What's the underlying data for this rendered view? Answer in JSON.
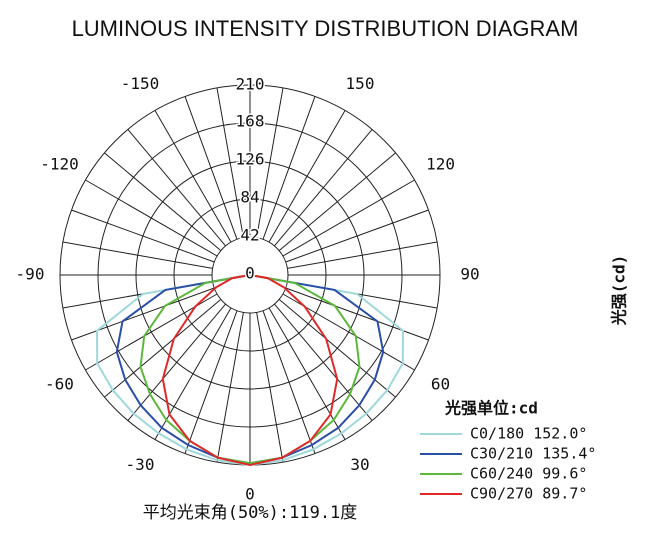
{
  "chart_data": {
    "type": "polar",
    "title": "LUMINOUS INTENSITY DISTRIBUTION DIAGRAM",
    "y_label": "光强(cd)",
    "legend_title": "光强单位:cd",
    "footer": "平均光束角(50%):119.1度",
    "rlim": [
      0,
      210
    ],
    "rticks": [
      0,
      42,
      84,
      126,
      168,
      210
    ],
    "angle_ticks": [
      -150,
      -120,
      -90,
      -60,
      -30,
      0,
      30,
      60,
      90,
      120,
      150
    ],
    "angles": [
      -90,
      -80,
      -70,
      -60,
      -50,
      -40,
      -30,
      -20,
      -10,
      0,
      10,
      20,
      30,
      40,
      50,
      60,
      70,
      80,
      90
    ],
    "series": [
      {
        "name": "C0/180 152.0°",
        "color": "#9fd8dc",
        "values": [
          0,
          120,
          180,
          195,
          198,
          200,
          202,
          205,
          208,
          210,
          208,
          205,
          202,
          200,
          198,
          195,
          180,
          120,
          0
        ]
      },
      {
        "name": "C30/210 135.4°",
        "color": "#2a4fa8",
        "values": [
          0,
          95,
          150,
          170,
          180,
          188,
          195,
          200,
          205,
          208,
          205,
          200,
          195,
          188,
          180,
          170,
          150,
          95,
          0
        ]
      },
      {
        "name": "C60/240 99.6°",
        "color": "#5cb83a",
        "values": [
          0,
          50,
          100,
          135,
          158,
          172,
          185,
          195,
          205,
          208,
          205,
          195,
          185,
          172,
          158,
          135,
          100,
          50,
          0
        ]
      },
      {
        "name": "C90/270 89.7°",
        "color": "#e02828",
        "values": [
          0,
          20,
          40,
          70,
          110,
          150,
          178,
          195,
          205,
          210,
          205,
          195,
          178,
          150,
          110,
          70,
          40,
          20,
          0
        ]
      }
    ]
  }
}
